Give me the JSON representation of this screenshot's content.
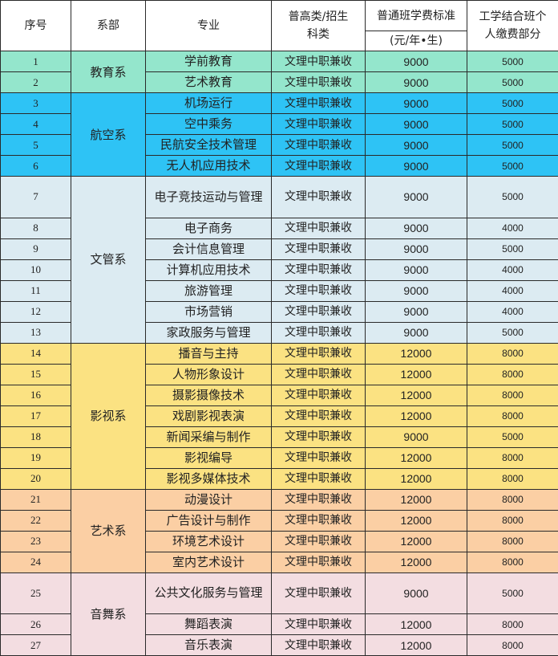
{
  "header": {
    "seq": "序号",
    "dept": "系部",
    "major": "专业",
    "category": "普高类/招生科类",
    "fee_title": "普通班学费标准",
    "fee_unit": "(元/年•生)",
    "work_study": "工学结合班个人缴费部分"
  },
  "departments": [
    {
      "name": "教育系",
      "color": "#94e6cc",
      "rows": [
        {
          "no": "1",
          "major": "学前教育",
          "category": "文理中职兼收",
          "fee": "9000",
          "work_study": "5000"
        },
        {
          "no": "2",
          "major": "艺术教育",
          "category": "文理中职兼收",
          "fee": "9000",
          "work_study": "5000"
        }
      ]
    },
    {
      "name": "航空系",
      "color": "#2ec3f5",
      "rows": [
        {
          "no": "3",
          "major": "机场运行",
          "category": "文理中职兼收",
          "fee": "9000",
          "work_study": "5000"
        },
        {
          "no": "4",
          "major": "空中乘务",
          "category": "文理中职兼收",
          "fee": "9000",
          "work_study": "5000"
        },
        {
          "no": "5",
          "major": "民航安全技术管理",
          "category": "文理中职兼收",
          "fee": "9000",
          "work_study": "5000"
        },
        {
          "no": "6",
          "major": "无人机应用技术",
          "category": "文理中职兼收",
          "fee": "9000",
          "work_study": "5000"
        }
      ]
    },
    {
      "name": "文管系",
      "color": "#dcebf2",
      "rows": [
        {
          "no": "7",
          "major": "电子竞技运动与管理",
          "category": "文理中职兼收",
          "fee": "9000",
          "work_study": "5000"
        },
        {
          "no": "8",
          "major": "电子商务",
          "category": "文理中职兼收",
          "fee": "9000",
          "work_study": "4000"
        },
        {
          "no": "9",
          "major": "会计信息管理",
          "category": "文理中职兼收",
          "fee": "9000",
          "work_study": "5000"
        },
        {
          "no": "10",
          "major": "计算机应用技术",
          "category": "文理中职兼收",
          "fee": "9000",
          "work_study": "4000"
        },
        {
          "no": "11",
          "major": "旅游管理",
          "category": "文理中职兼收",
          "fee": "9000",
          "work_study": "4000"
        },
        {
          "no": "12",
          "major": "市场营销",
          "category": "文理中职兼收",
          "fee": "9000",
          "work_study": "4000"
        },
        {
          "no": "13",
          "major": "家政服务与管理",
          "category": "文理中职兼收",
          "fee": "9000",
          "work_study": "5000"
        }
      ]
    },
    {
      "name": "影视系",
      "color": "#fbe282",
      "rows": [
        {
          "no": "14",
          "major": "播音与主持",
          "category": "文理中职兼收",
          "fee": "12000",
          "work_study": "8000"
        },
        {
          "no": "15",
          "major": "人物形象设计",
          "category": "文理中职兼收",
          "fee": "12000",
          "work_study": "8000"
        },
        {
          "no": "16",
          "major": "摄影摄像技术",
          "category": "文理中职兼收",
          "fee": "12000",
          "work_study": "8000"
        },
        {
          "no": "17",
          "major": "戏剧影视表演",
          "category": "文理中职兼收",
          "fee": "12000",
          "work_study": "8000"
        },
        {
          "no": "18",
          "major": "新闻采编与制作",
          "category": "文理中职兼收",
          "fee": "9000",
          "work_study": "5000"
        },
        {
          "no": "19",
          "major": "影视编导",
          "category": "文理中职兼收",
          "fee": "12000",
          "work_study": "8000"
        },
        {
          "no": "20",
          "major": "影视多媒体技术",
          "category": "文理中职兼收",
          "fee": "12000",
          "work_study": "8000"
        }
      ]
    },
    {
      "name": "艺术系",
      "color": "#fbcfa4",
      "rows": [
        {
          "no": "21",
          "major": "动漫设计",
          "category": "文理中职兼收",
          "fee": "12000",
          "work_study": "8000"
        },
        {
          "no": "22",
          "major": "广告设计与制作",
          "category": "文理中职兼收",
          "fee": "12000",
          "work_study": "8000"
        },
        {
          "no": "23",
          "major": "环境艺术设计",
          "category": "文理中职兼收",
          "fee": "12000",
          "work_study": "8000"
        },
        {
          "no": "24",
          "major": "室内艺术设计",
          "category": "文理中职兼收",
          "fee": "12000",
          "work_study": "8000"
        }
      ]
    },
    {
      "name": "音舞系",
      "color": "#f3dde1",
      "rows": [
        {
          "no": "25",
          "major": "公共文化服务与管理",
          "category": "文理中职兼收",
          "fee": "9000",
          "work_study": "5000"
        },
        {
          "no": "26",
          "major": "舞蹈表演",
          "category": "文理中职兼收",
          "fee": "12000",
          "work_study": "8000"
        },
        {
          "no": "27",
          "major": "音乐表演",
          "category": "文理中职兼收",
          "fee": "12000",
          "work_study": "8000"
        }
      ]
    }
  ]
}
